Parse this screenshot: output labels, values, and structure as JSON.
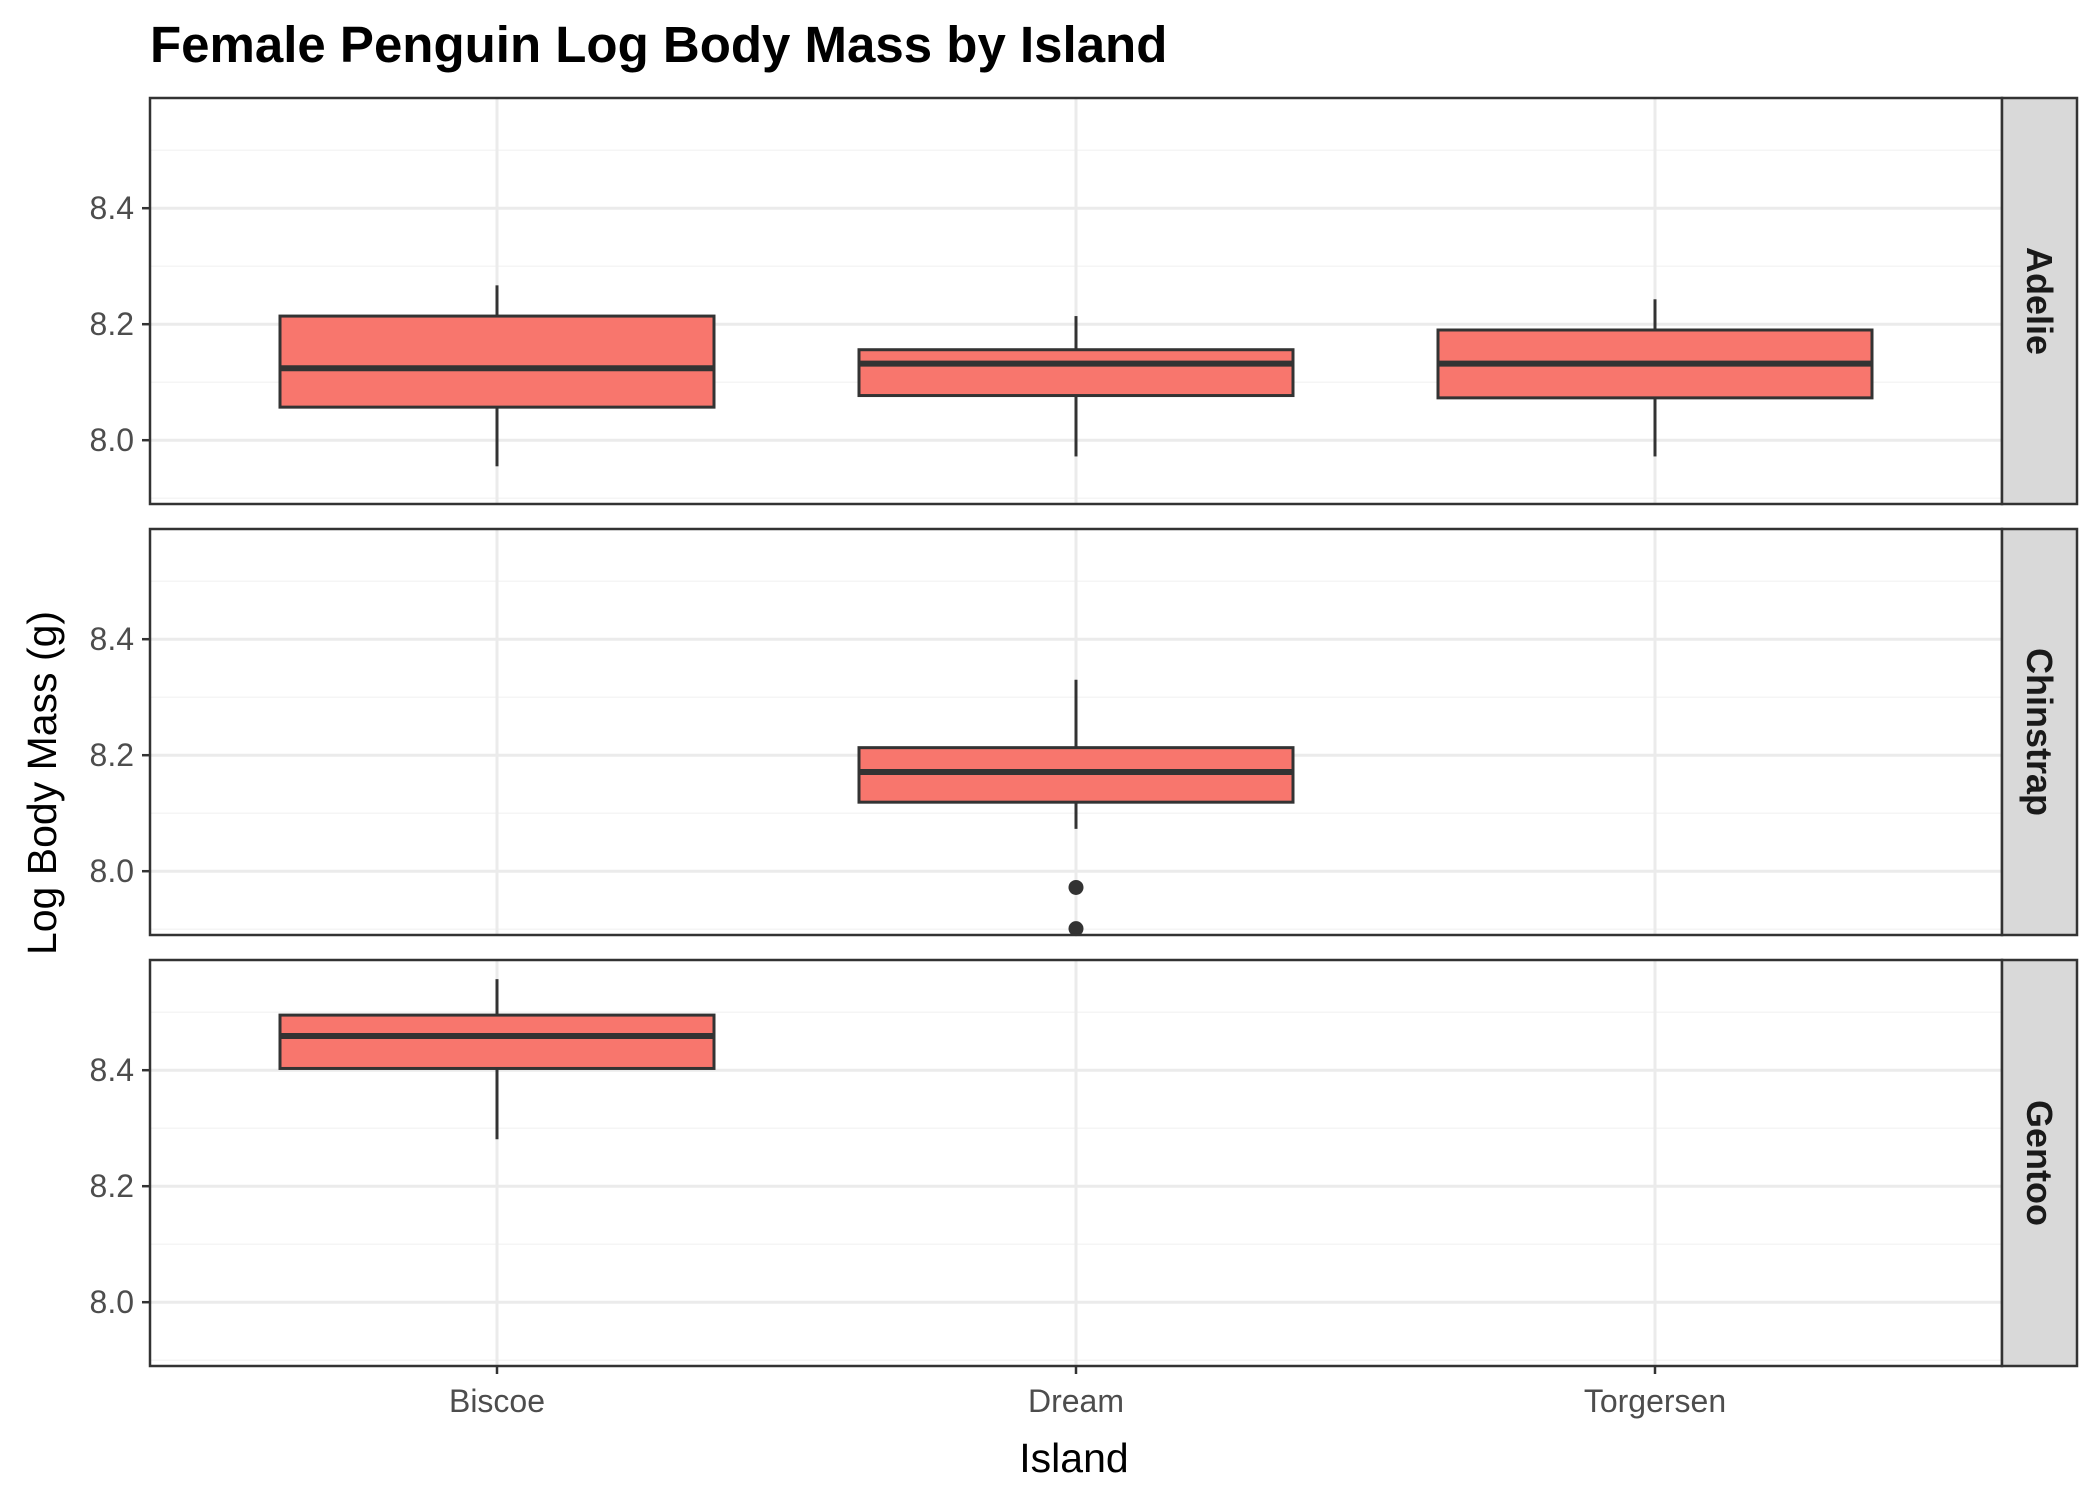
{
  "chart_data": {
    "type": "boxplot",
    "title": "Female Penguin Log Body Mass by Island",
    "xlabel": "Island",
    "ylabel": "Log Body Mass (g)",
    "categories": [
      "Biscoe",
      "Dream",
      "Torgersen"
    ],
    "ylim": [
      7.89,
      8.59
    ],
    "y_ticks": [
      8.0,
      8.2,
      8.4
    ],
    "y_tick_labels": [
      "8.0",
      "8.2",
      "8.4"
    ],
    "grid": true,
    "facet_layout": "rows",
    "colors": {
      "box_fill": "#F8766D",
      "box_line": "#333333",
      "grid_major": "#ebebeb",
      "grid_minor": "#f5f5f5",
      "strip_bg": "#d9d9d9",
      "panel_border": "#333333"
    },
    "facets": [
      {
        "label": "Adelie",
        "boxes": [
          {
            "category": "Biscoe",
            "min": 7.955,
            "q1": 8.057,
            "median": 8.124,
            "q3": 8.214,
            "max": 8.267,
            "outliers": []
          },
          {
            "category": "Dream",
            "min": 7.972,
            "q1": 8.077,
            "median": 8.132,
            "q3": 8.156,
            "max": 8.214,
            "outliers": []
          },
          {
            "category": "Torgersen",
            "min": 7.972,
            "q1": 8.073,
            "median": 8.132,
            "q3": 8.19,
            "max": 8.243,
            "outliers": []
          }
        ]
      },
      {
        "label": "Chinstrap",
        "boxes": [
          {
            "category": "Dream",
            "min": 8.073,
            "q1": 8.119,
            "median": 8.171,
            "q3": 8.213,
            "max": 8.33,
            "outliers": [
              7.972,
              7.901
            ]
          }
        ]
      },
      {
        "label": "Gentoo",
        "boxes": [
          {
            "category": "Biscoe",
            "min": 8.281,
            "q1": 8.403,
            "median": 8.459,
            "q3": 8.495,
            "max": 8.557,
            "outliers": []
          }
        ]
      }
    ]
  }
}
